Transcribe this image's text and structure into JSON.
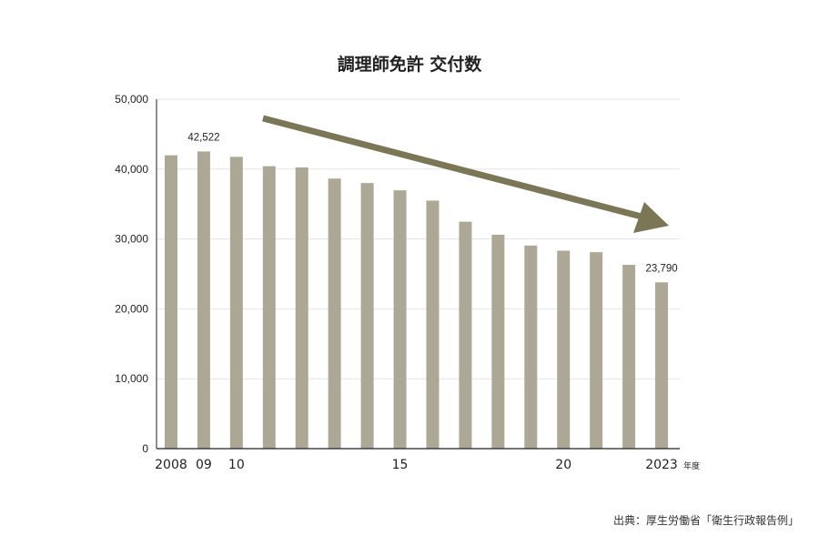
{
  "chart_data": {
    "type": "bar",
    "title": "調理師免許 交付数",
    "categories": [
      "2008",
      "2009",
      "2010",
      "2011",
      "2012",
      "2013",
      "2014",
      "2015",
      "2016",
      "2017",
      "2018",
      "2019",
      "2020",
      "2021",
      "2022",
      "2023"
    ],
    "tick_labels": [
      "2008",
      "09",
      "10",
      "",
      "",
      "",
      "",
      "15",
      "",
      "",
      "",
      "",
      "20",
      "",
      "",
      "2023"
    ],
    "x_unit": "年度",
    "values": [
      41970,
      42522,
      41750,
      40410,
      40240,
      38640,
      38000,
      36960,
      35490,
      32470,
      30610,
      29060,
      28320,
      28110,
      26300,
      23790
    ],
    "data_labels": {
      "2009": "42,522",
      "2023": "23,790"
    },
    "ylim": [
      0,
      50000
    ],
    "yticks": [
      0,
      10000,
      20000,
      30000,
      40000,
      50000
    ],
    "ytick_labels": [
      "0",
      "10,000",
      "20,000",
      "30,000",
      "40,000",
      "50,000"
    ],
    "grid": true,
    "annotation": "downward trend arrow",
    "colors": {
      "bar": "#ada895",
      "arrow": "#7a7656",
      "grid": "#e6e6e6"
    }
  },
  "source": "出典：厚生労働省「衛生行政報告例」"
}
